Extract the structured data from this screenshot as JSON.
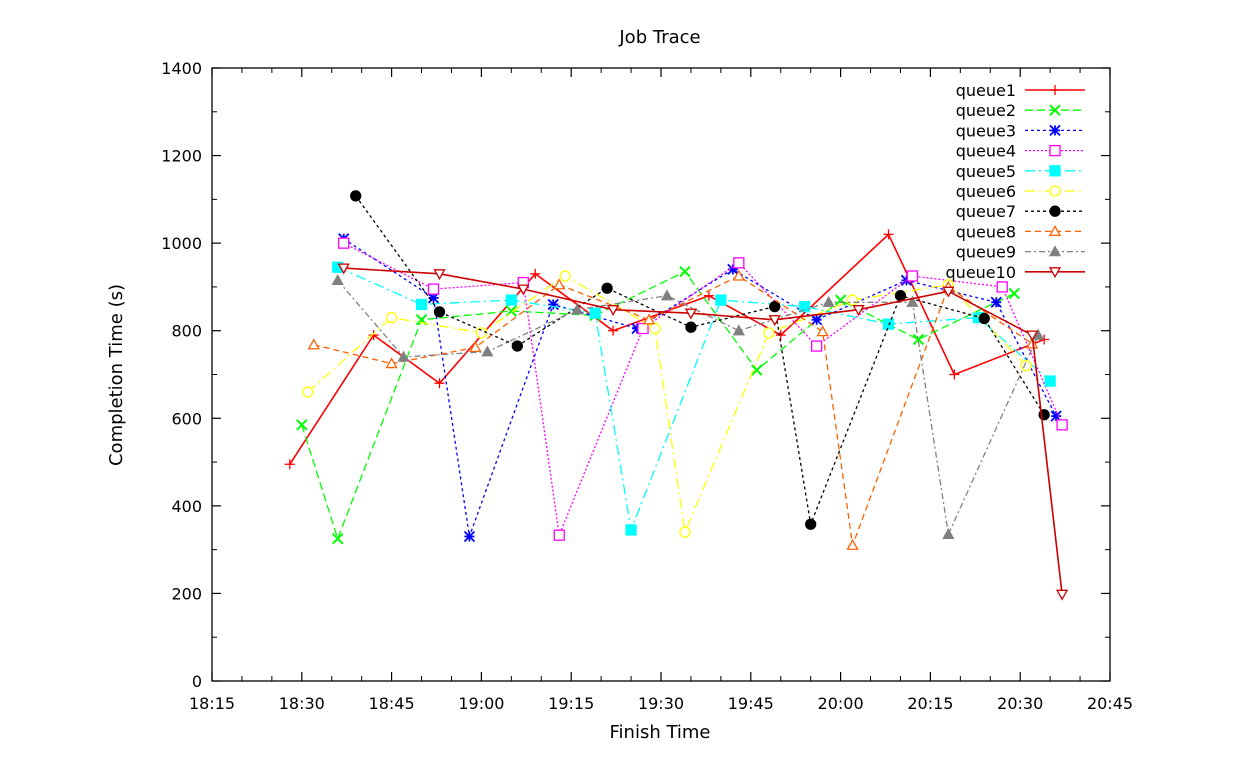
{
  "chart_data": {
    "type": "line",
    "title": "Job Trace",
    "xlabel": "Finish Time",
    "ylabel": "Completion Time (s)",
    "xlim": [
      "18:15",
      "20:45"
    ],
    "ylim": [
      0,
      1400
    ],
    "x_ticks": [
      "18:15",
      "18:30",
      "18:45",
      "19:00",
      "19:15",
      "19:30",
      "19:45",
      "20:00",
      "20:15",
      "20:30",
      "20:45"
    ],
    "y_ticks": [
      0,
      200,
      400,
      600,
      800,
      1000,
      1200,
      1400
    ],
    "grid": false,
    "legend_position": "top-right",
    "series": [
      {
        "name": "queue1",
        "color": "#ff0000",
        "dash": "solid",
        "marker": "plus",
        "points": [
          [
            "18:28",
            495
          ],
          [
            "18:42",
            790
          ],
          [
            "18:53",
            680
          ],
          [
            "19:09",
            930
          ],
          [
            "19:22",
            800
          ],
          [
            "19:38",
            880
          ],
          [
            "19:50",
            790
          ],
          [
            "20:08",
            1020
          ],
          [
            "20:19",
            700
          ],
          [
            "20:34",
            780
          ]
        ]
      },
      {
        "name": "queue2",
        "color": "#00ff00",
        "dash": "8,4",
        "marker": "x",
        "points": [
          [
            "18:30",
            585
          ],
          [
            "18:36",
            325
          ],
          [
            "18:50",
            825
          ],
          [
            "19:05",
            845
          ],
          [
            "19:19",
            835
          ],
          [
            "19:34",
            935
          ],
          [
            "19:46",
            710
          ],
          [
            "20:00",
            870
          ],
          [
            "20:13",
            780
          ],
          [
            "20:29",
            885
          ]
        ]
      },
      {
        "name": "queue3",
        "color": "#0000ff",
        "dash": "3,3",
        "marker": "asterisk",
        "points": [
          [
            "18:37",
            1010
          ],
          [
            "18:52",
            875
          ],
          [
            "18:58",
            330
          ],
          [
            "19:12",
            860
          ],
          [
            "19:26",
            805
          ],
          [
            "19:42",
            940
          ],
          [
            "19:56",
            825
          ],
          [
            "20:11",
            915
          ],
          [
            "20:26",
            865
          ],
          [
            "20:36",
            605
          ]
        ]
      },
      {
        "name": "queue4",
        "color": "#ff00ff",
        "dash": "2,2",
        "marker": "square-open",
        "points": [
          [
            "18:37",
            1000
          ],
          [
            "18:52",
            895
          ],
          [
            "19:07",
            910
          ],
          [
            "19:13",
            333
          ],
          [
            "19:27",
            805
          ],
          [
            "19:43",
            955
          ],
          [
            "19:56",
            765
          ],
          [
            "20:12",
            925
          ],
          [
            "20:27",
            900
          ],
          [
            "20:37",
            585
          ]
        ]
      },
      {
        "name": "queue5",
        "color": "#00ffff",
        "dash": "10,4,2,4",
        "marker": "square-filled",
        "points": [
          [
            "18:36",
            945
          ],
          [
            "18:50",
            860
          ],
          [
            "19:05",
            870
          ],
          [
            "19:19",
            840
          ],
          [
            "19:25",
            345
          ],
          [
            "19:40",
            870
          ],
          [
            "19:54",
            855
          ],
          [
            "20:08",
            815
          ],
          [
            "20:23",
            830
          ],
          [
            "20:35",
            685
          ]
        ]
      },
      {
        "name": "queue6",
        "color": "#ffff00",
        "dash": "10,4,2,4",
        "marker": "circle-open",
        "points": [
          [
            "18:31",
            660
          ],
          [
            "18:45",
            830
          ],
          [
            "19:00",
            795
          ],
          [
            "19:14",
            925
          ],
          [
            "19:29",
            805
          ],
          [
            "19:34",
            340
          ],
          [
            "19:48",
            795
          ],
          [
            "20:02",
            870
          ],
          [
            "20:18",
            905
          ],
          [
            "20:31",
            720
          ]
        ]
      },
      {
        "name": "queue7",
        "color": "#000000",
        "dash": "3,3",
        "marker": "circle-filled",
        "points": [
          [
            "18:39",
            1108
          ],
          [
            "18:53",
            843
          ],
          [
            "19:06",
            765
          ],
          [
            "19:21",
            897
          ],
          [
            "19:35",
            808
          ],
          [
            "19:49",
            855
          ],
          [
            "19:55",
            358
          ],
          [
            "20:10",
            880
          ],
          [
            "20:24",
            828
          ],
          [
            "20:34",
            608
          ]
        ]
      },
      {
        "name": "queue8",
        "color": "#ff6000",
        "dash": "6,4",
        "marker": "triangle-open",
        "points": [
          [
            "18:32",
            768
          ],
          [
            "18:45",
            725
          ],
          [
            "18:59",
            762
          ],
          [
            "19:13",
            905
          ],
          [
            "19:28",
            825
          ],
          [
            "19:43",
            925
          ],
          [
            "19:57",
            798
          ],
          [
            "20:02",
            310
          ],
          [
            "20:18",
            900
          ],
          [
            "20:32",
            770
          ]
        ]
      },
      {
        "name": "queue9",
        "color": "#808080",
        "dash": "6,3,2,3",
        "marker": "triangle-filled",
        "points": [
          [
            "18:36",
            915
          ],
          [
            "18:47",
            740
          ],
          [
            "19:01",
            752
          ],
          [
            "19:16",
            848
          ],
          [
            "19:31",
            880
          ],
          [
            "19:43",
            800
          ],
          [
            "19:58",
            865
          ],
          [
            "20:12",
            865
          ],
          [
            "20:18",
            335
          ],
          [
            "20:33",
            790
          ]
        ]
      },
      {
        "name": "queue10",
        "color": "#cc0000",
        "dash": "solid",
        "marker": "triangle-down-open",
        "points": [
          [
            "18:37",
            943
          ],
          [
            "18:53",
            930
          ],
          [
            "19:07",
            895
          ],
          [
            "19:22",
            848
          ],
          [
            "19:35",
            840
          ],
          [
            "19:49",
            825
          ],
          [
            "20:03",
            848
          ],
          [
            "20:18",
            890
          ],
          [
            "20:32",
            790
          ],
          [
            "20:37",
            198
          ]
        ]
      }
    ]
  }
}
